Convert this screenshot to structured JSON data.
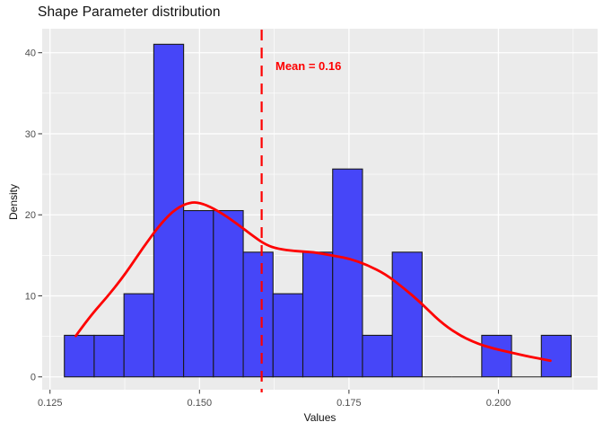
{
  "chart_data": {
    "type": "bar",
    "subtype": "histogram-with-density",
    "title": "Shape Parameter distribution",
    "xlabel": "Values",
    "ylabel": "Density",
    "xlim": [
      0.12369,
      0.21659
    ],
    "ylim": [
      -1.58,
      42.96
    ],
    "grid": "on",
    "legend": "none",
    "panel_bg": "#ebebeb",
    "grid_color": "#ffffff",
    "x_ticks": {
      "values": [
        0.125,
        0.15,
        0.175,
        0.2
      ],
      "labels": [
        "0.125",
        "0.150",
        "0.175",
        "0.200"
      ],
      "minor": [
        0.1375,
        0.1625,
        0.1875,
        0.2125
      ]
    },
    "y_ticks": {
      "values": [
        0,
        10,
        20,
        30,
        40
      ],
      "labels": [
        "0",
        "10",
        "20",
        "30",
        "40"
      ],
      "minor": [
        5,
        15,
        25,
        35
      ]
    },
    "histogram": {
      "bin_start": 0.1274,
      "bin_width": 0.0049863,
      "densities": [
        5.13,
        5.13,
        10.26,
        41.04,
        20.52,
        20.52,
        15.39,
        10.26,
        15.39,
        25.65,
        5.13,
        15.39,
        0,
        0,
        5.13,
        0,
        5.13
      ],
      "fill": "#4646f8",
      "stroke": "#1a1a1a"
    },
    "density_curve": {
      "color": "#fe0000",
      "points": [
        [
          0.1293,
          5.05
        ],
        [
          0.1316,
          7.4
        ],
        [
          0.1346,
          9.9
        ],
        [
          0.1376,
          12.7
        ],
        [
          0.1406,
          16.0
        ],
        [
          0.1436,
          19.0
        ],
        [
          0.1461,
          20.8
        ],
        [
          0.1486,
          21.6
        ],
        [
          0.1506,
          21.4
        ],
        [
          0.1531,
          20.5
        ],
        [
          0.1561,
          19.0
        ],
        [
          0.1591,
          17.3
        ],
        [
          0.1611,
          16.3
        ],
        [
          0.1631,
          15.8
        ],
        [
          0.1661,
          15.5
        ],
        [
          0.1691,
          15.4
        ],
        [
          0.1721,
          15.0
        ],
        [
          0.1751,
          14.6
        ],
        [
          0.1781,
          13.8
        ],
        [
          0.1811,
          12.7
        ],
        [
          0.1841,
          11.0
        ],
        [
          0.1871,
          9.1
        ],
        [
          0.1901,
          6.9
        ],
        [
          0.1931,
          5.3
        ],
        [
          0.1961,
          4.2
        ],
        [
          0.1991,
          3.5
        ],
        [
          0.2021,
          3.0
        ],
        [
          0.2051,
          2.5
        ],
        [
          0.2087,
          2.0
        ]
      ]
    },
    "mean_line": {
      "x": 0.1604,
      "color": "#fe0000",
      "style": "dashed",
      "label": "Mean = 0.16"
    },
    "tick_label_color": "#4d4d4d",
    "tick_mark_color": "#333333"
  }
}
